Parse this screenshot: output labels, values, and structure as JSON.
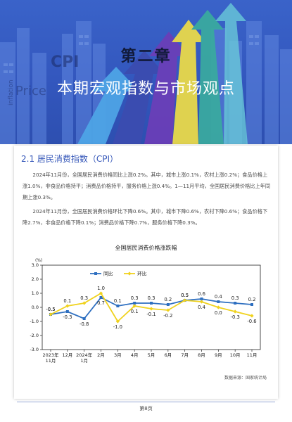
{
  "banner": {
    "chapter_title": "第二章",
    "section_heading": "本期宏观指数与市场观点",
    "background_words": [
      "CPI",
      "Price",
      "inflation"
    ]
  },
  "section": {
    "heading": "2.1 居民消费指数（CPI）",
    "paragraphs": [
      "2024年11月份，全国居民消费价格同比上涨0.2%。其中，城市上涨0.1%，农村上涨0.2%；食品价格上涨1.0%，非食品价格持平；消费品价格持平，服务价格上涨0.4%。1—11月平均，全国居民消费价格比上年同期上涨0.3%。",
      "2024年11月份，全国居民消费价格环比下降0.6%。其中，城市下降0.6%，农村下降0.6%；食品价格下降2.7%，非食品价格下降0.1%；消费品价格下降0.7%，服务价格下降0.3%。"
    ]
  },
  "chart_data": {
    "type": "line",
    "title": "全国居民消费价格涨跌幅",
    "ylabel": "(%)",
    "ylim": [
      -3.0,
      3.0
    ],
    "yticks": [
      "3.0",
      "2.0",
      "1.0",
      "0.0",
      "-1.0",
      "-2.0",
      "-3.0"
    ],
    "categories": [
      [
        "2023年",
        "11月"
      ],
      [
        "12月"
      ],
      [
        "2024年",
        "1月"
      ],
      [
        "2月"
      ],
      [
        "3月"
      ],
      [
        "4月"
      ],
      [
        "5月"
      ],
      [
        "6月"
      ],
      [
        "7月"
      ],
      [
        "8月"
      ],
      [
        "9月"
      ],
      [
        "10月"
      ],
      [
        "11月"
      ]
    ],
    "series": [
      {
        "name": "同比",
        "color": "#2e6fc0",
        "values": [
          -0.5,
          -0.3,
          -0.8,
          0.7,
          0.1,
          0.3,
          0.3,
          0.2,
          0.5,
          0.6,
          0.4,
          0.3,
          0.2
        ]
      },
      {
        "name": "环比",
        "color": "#f0d21e",
        "values": [
          -0.5,
          0.1,
          0.3,
          1.0,
          -1.0,
          0.1,
          -0.1,
          -0.2,
          0.5,
          0.4,
          0.0,
          -0.3,
          -0.6
        ]
      }
    ],
    "labels_yoy": [
      "-0.5",
      "-0.3",
      "-0.8",
      "0.7",
      "0.1",
      "0.3",
      "0.3",
      "0.2",
      "0.5",
      "0.6",
      "0.4",
      "0.3",
      "0.2"
    ],
    "labels_mom": [
      "-0.5",
      "0.1",
      "0.3",
      "1.0",
      "-1.0",
      "0.1",
      "-0.1",
      "-0.2",
      "0.5",
      "0.4",
      "0.0",
      "-0.3",
      "-0.6"
    ],
    "legend_position": "top-left",
    "grid": false
  },
  "source_note": "数据来源：国家统计局",
  "footer": {
    "page_label": "第8页"
  }
}
